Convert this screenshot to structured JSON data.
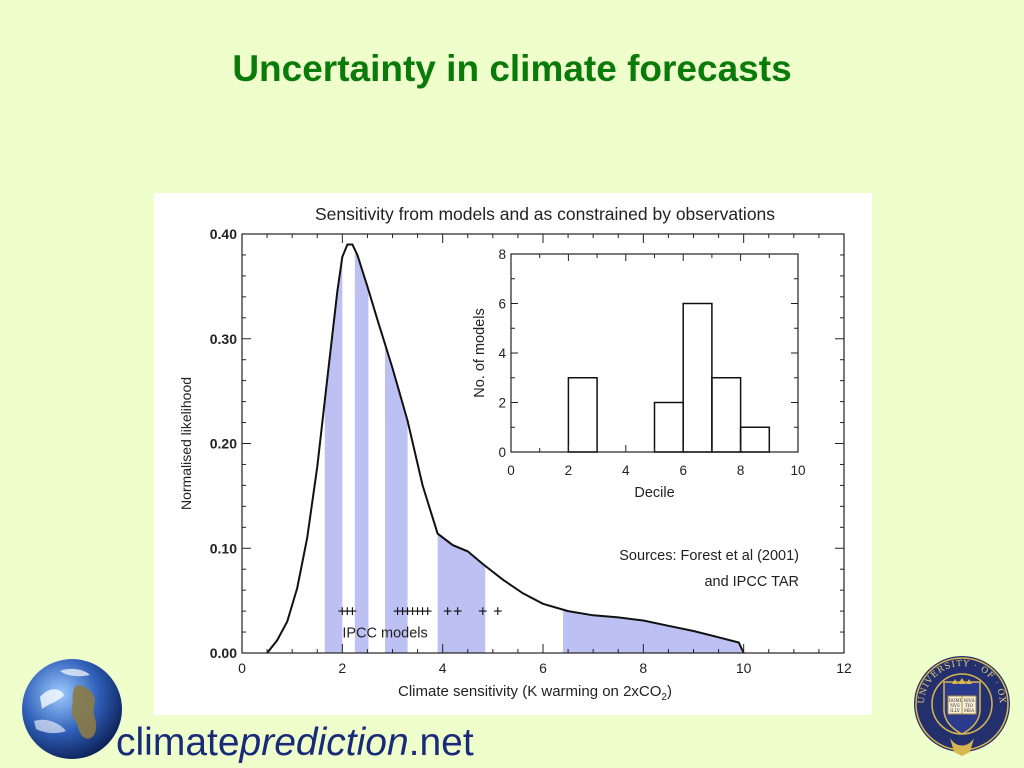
{
  "slide": {
    "title": "Uncertainty in climate forecasts",
    "logo_text": {
      "part1": "climate",
      "part2": "prediction",
      "part3": ".net"
    },
    "seal_text": "UNIVERSITY · OF · OXFORD",
    "seal_book": [
      "DOMI",
      "NVS",
      "ILLV",
      "NIVA",
      "TIO",
      "MEA"
    ]
  },
  "chart_data": [
    {
      "type": "line",
      "title": "Sensitivity from models and as constrained by observations",
      "xlabel": "Climate sensitivity (K warming on 2xCO",
      "xlabel_sub": "2",
      "xlabel_end": ")",
      "ylabel": "Normalised likelihood",
      "xlim": [
        0,
        12
      ],
      "ylim": [
        0,
        0.4
      ],
      "xticks": [
        "0",
        "2",
        "4",
        "6",
        "8",
        "10",
        "12"
      ],
      "yticks": [
        "0.00",
        "0.10",
        "0.20",
        "0.30",
        "0.40"
      ],
      "curve": {
        "x": [
          0.5,
          0.7,
          0.9,
          1.1,
          1.3,
          1.5,
          1.7,
          1.9,
          2.0,
          2.1,
          2.2,
          2.3,
          2.5,
          2.7,
          3.0,
          3.3,
          3.6,
          3.9,
          4.2,
          4.5,
          4.8,
          5.2,
          5.6,
          6.0,
          6.5,
          7.0,
          7.5,
          8.0,
          8.5,
          9.0,
          9.5,
          9.9,
          10.0
        ],
        "y": [
          0.0,
          0.012,
          0.03,
          0.062,
          0.11,
          0.178,
          0.262,
          0.345,
          0.378,
          0.39,
          0.39,
          0.38,
          0.35,
          0.318,
          0.272,
          0.222,
          0.16,
          0.114,
          0.103,
          0.097,
          0.085,
          0.07,
          0.057,
          0.047,
          0.04,
          0.036,
          0.034,
          0.031,
          0.026,
          0.021,
          0.015,
          0.01,
          0.0
        ]
      },
      "shaded_bands": [
        [
          1.65,
          2.0
        ],
        [
          2.25,
          2.52
        ],
        [
          2.85,
          3.3
        ],
        [
          3.9,
          4.85
        ],
        [
          6.4,
          10.0
        ]
      ],
      "ipcc_models_x": [
        2.0,
        2.1,
        2.2,
        3.1,
        3.2,
        3.3,
        3.4,
        3.5,
        3.6,
        3.7,
        4.1,
        4.3,
        4.8,
        5.1
      ],
      "ipcc_label": "IPCC models",
      "annotations": [
        "Sources: Forest et al (2001)",
        "and IPCC TAR"
      ]
    },
    {
      "type": "bar",
      "title": "",
      "xlabel": "Decile",
      "ylabel": "No. of models",
      "xlim": [
        0,
        10
      ],
      "ylim": [
        0,
        8
      ],
      "xticks": [
        "0",
        "2",
        "4",
        "6",
        "8",
        "10"
      ],
      "yticks": [
        "0",
        "2",
        "4",
        "6",
        "8"
      ],
      "bins": [
        {
          "x0": 2,
          "x1": 3,
          "value": 3
        },
        {
          "x0": 5,
          "x1": 6,
          "value": 2
        },
        {
          "x0": 6,
          "x1": 7,
          "value": 6
        },
        {
          "x0": 7,
          "x1": 8,
          "value": 3
        },
        {
          "x0": 8,
          "x1": 9,
          "value": 1
        }
      ]
    }
  ]
}
